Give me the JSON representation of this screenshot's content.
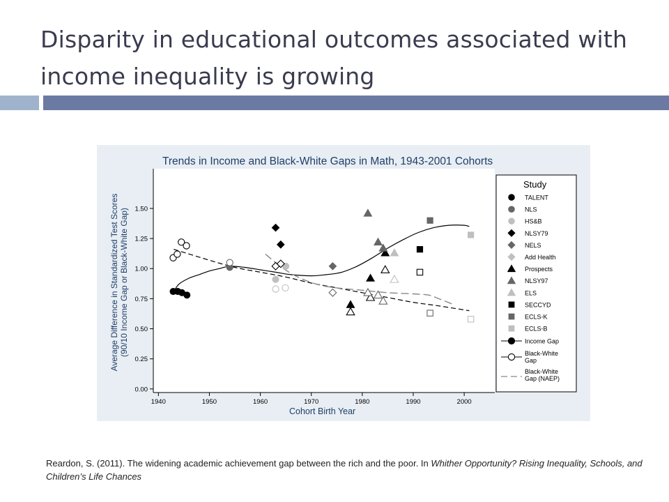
{
  "slide": {
    "title": "Disparity in educational outcomes associated with income inequality is growing",
    "citation_main": "Reardon, S. (2011). The widening academic achievement gap between the rich and the poor. In ",
    "citation_italic": "Whither Opportunity? Rising Inequality, Schools, and Children’s Life Chances",
    "colors": {
      "bar_light": "#9fb3cc",
      "bar_dark": "#6b7aa3",
      "chart_bg": "#e8eef3"
    }
  },
  "chart_data": {
    "type": "scatter",
    "title": "Trends in Income and Black-White Gaps in Math, 1943-2001 Cohorts",
    "xlabel": "Cohort Birth Year",
    "ylabel_line1": "Average Difference in Standardized Test Scores",
    "ylabel_line2": "(90/10 Income Gap or Black-White Gap)",
    "xlim": [
      1939,
      2006
    ],
    "ylim": [
      -0.03,
      1.83
    ],
    "xticks": [
      "1940",
      "1950",
      "1960",
      "1970",
      "1980",
      "1990",
      "2000"
    ],
    "yticks": [
      "0.00",
      "0.25",
      "0.50",
      "0.75",
      "1.00",
      "1.25",
      "1.50"
    ],
    "grid": false,
    "legend_title": "Study",
    "legend_position": "right",
    "studies": [
      {
        "name": "TALENT",
        "marker": "circle",
        "color": "#000000"
      },
      {
        "name": "NLS",
        "marker": "circle",
        "color": "#666666"
      },
      {
        "name": "HS&B",
        "marker": "circle",
        "color": "#bfbfbf"
      },
      {
        "name": "NLSY79",
        "marker": "diamond",
        "color": "#000000"
      },
      {
        "name": "NELS",
        "marker": "diamond",
        "color": "#666666"
      },
      {
        "name": "Add Health",
        "marker": "diamond",
        "color": "#bfbfbf"
      },
      {
        "name": "Prospects",
        "marker": "triangle",
        "color": "#000000"
      },
      {
        "name": "NLSY97",
        "marker": "triangle",
        "color": "#666666"
      },
      {
        "name": "ELS",
        "marker": "triangle",
        "color": "#bfbfbf"
      },
      {
        "name": "SECCYD",
        "marker": "square",
        "color": "#000000"
      },
      {
        "name": "ECLS-K",
        "marker": "square",
        "color": "#666666"
      },
      {
        "name": "ECLS-B",
        "marker": "square",
        "color": "#bfbfbf"
      }
    ],
    "line_legend": [
      {
        "name": "Income Gap",
        "style": "solid-filled"
      },
      {
        "name": "Black-White Gap",
        "style": "solid-hollow"
      },
      {
        "name": "Black-White Gap (NAEP)",
        "style": "dashed"
      }
    ],
    "points": [
      {
        "study": "TALENT",
        "gap": "income",
        "x": 1942.9,
        "y": 0.81
      },
      {
        "study": "TALENT",
        "gap": "income",
        "x": 1943.8,
        "y": 0.81
      },
      {
        "study": "TALENT",
        "gap": "income",
        "x": 1944.6,
        "y": 0.8
      },
      {
        "study": "TALENT",
        "gap": "income",
        "x": 1945.6,
        "y": 0.78
      },
      {
        "study": "TALENT",
        "gap": "bw",
        "x": 1942.9,
        "y": 1.09
      },
      {
        "study": "TALENT",
        "gap": "bw",
        "x": 1943.7,
        "y": 1.12
      },
      {
        "study": "TALENT",
        "gap": "bw",
        "x": 1944.5,
        "y": 1.22
      },
      {
        "study": "TALENT",
        "gap": "bw",
        "x": 1945.5,
        "y": 1.19
      },
      {
        "study": "NLS",
        "gap": "income",
        "x": 1954,
        "y": 1.01
      },
      {
        "study": "NLS",
        "gap": "bw",
        "x": 1954,
        "y": 1.05
      },
      {
        "study": "HS&B",
        "gap": "income",
        "x": 1963,
        "y": 0.91
      },
      {
        "study": "HS&B",
        "gap": "income",
        "x": 1965,
        "y": 1.02
      },
      {
        "study": "HS&B",
        "gap": "bw",
        "x": 1963,
        "y": 0.83
      },
      {
        "study": "HS&B",
        "gap": "bw",
        "x": 1964.9,
        "y": 0.84
      },
      {
        "study": "NLSY79",
        "gap": "income",
        "x": 1963,
        "y": 1.34
      },
      {
        "study": "NLSY79",
        "gap": "income",
        "x": 1964,
        "y": 1.2
      },
      {
        "study": "NLSY79",
        "gap": "bw",
        "x": 1963,
        "y": 1.02
      },
      {
        "study": "NLSY79",
        "gap": "bw",
        "x": 1964,
        "y": 1.04
      },
      {
        "study": "NELS",
        "gap": "income",
        "x": 1974.2,
        "y": 1.02
      },
      {
        "study": "NELS",
        "gap": "bw",
        "x": 1974.2,
        "y": 0.8
      },
      {
        "study": "Prospects",
        "gap": "income",
        "x": 1977.7,
        "y": 0.7
      },
      {
        "study": "Prospects",
        "gap": "income",
        "x": 1981.6,
        "y": 0.92
      },
      {
        "study": "Prospects",
        "gap": "income",
        "x": 1984.5,
        "y": 1.13
      },
      {
        "study": "Prospects",
        "gap": "bw",
        "x": 1977.7,
        "y": 0.64
      },
      {
        "study": "Prospects",
        "gap": "bw",
        "x": 1981.6,
        "y": 0.76
      },
      {
        "study": "Prospects",
        "gap": "bw",
        "x": 1984.5,
        "y": 0.99
      },
      {
        "study": "NLSY97",
        "gap": "income",
        "x": 1981.1,
        "y": 1.46
      },
      {
        "study": "NLSY97",
        "gap": "income",
        "x": 1983.1,
        "y": 1.22
      },
      {
        "study": "NLSY97",
        "gap": "income",
        "x": 1984.1,
        "y": 1.17
      },
      {
        "study": "NLSY97",
        "gap": "bw",
        "x": 1981.1,
        "y": 0.8
      },
      {
        "study": "NLSY97",
        "gap": "bw",
        "x": 1983.1,
        "y": 0.78
      },
      {
        "study": "NLSY97",
        "gap": "bw",
        "x": 1984.1,
        "y": 0.73
      },
      {
        "study": "ELS",
        "gap": "income",
        "x": 1986.3,
        "y": 1.13
      },
      {
        "study": "ELS",
        "gap": "bw",
        "x": 1986.3,
        "y": 0.91
      },
      {
        "study": "SECCYD",
        "gap": "income",
        "x": 1991.3,
        "y": 1.16
      },
      {
        "study": "SECCYD",
        "gap": "bw",
        "x": 1991.3,
        "y": 0.97
      },
      {
        "study": "ECLS-K",
        "gap": "income",
        "x": 1993.3,
        "y": 1.4
      },
      {
        "study": "ECLS-K",
        "gap": "bw",
        "x": 1993.3,
        "y": 0.63
      },
      {
        "study": "ECLS-B",
        "gap": "income",
        "x": 2001.3,
        "y": 1.28
      },
      {
        "study": "ECLS-B",
        "gap": "bw",
        "x": 2001.3,
        "y": 0.58
      }
    ],
    "trend_lines": [
      {
        "name": "Income Gap",
        "style": "solid",
        "x": [
          1942.9,
          1944,
          1946,
          1948,
          1950,
          1952,
          1954,
          1957,
          1960,
          1963,
          1966,
          1970,
          1973,
          1976,
          1979,
          1982,
          1985,
          1988,
          1991,
          1994,
          1997,
          2000,
          2001
        ],
        "y": [
          0.8,
          0.87,
          0.92,
          0.95,
          0.98,
          1.0,
          1.02,
          1.01,
          0.99,
          0.97,
          0.95,
          0.94,
          0.95,
          0.97,
          1.02,
          1.09,
          1.17,
          1.24,
          1.3,
          1.34,
          1.36,
          1.36,
          1.35
        ]
      },
      {
        "name": "Black-White Gap",
        "style": "dashed",
        "x": [
          1943,
          1950,
          1955,
          1960,
          1965,
          1970,
          1975,
          1980,
          1985,
          1990,
          1995,
          2001
        ],
        "y": [
          1.16,
          1.07,
          1.01,
          0.97,
          0.93,
          0.88,
          0.84,
          0.8,
          0.76,
          0.72,
          0.69,
          0.65
        ]
      },
      {
        "name": "Black-White Gap (NAEP)",
        "style": "longdash",
        "x": [
          1961,
          1963,
          1966,
          1969,
          1972,
          1975,
          1980,
          1985,
          1990,
          1993,
          1995,
          1998
        ],
        "y": [
          1.12,
          1.05,
          0.96,
          0.9,
          0.86,
          0.84,
          0.82,
          0.8,
          0.79,
          0.78,
          0.75,
          0.7
        ]
      }
    ]
  }
}
